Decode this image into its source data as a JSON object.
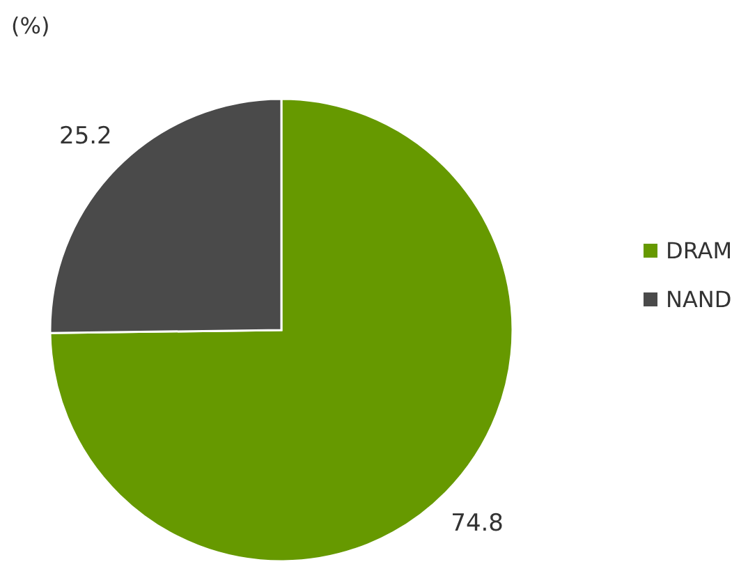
{
  "chart_data": {
    "type": "pie",
    "title": "(%)",
    "categories": [
      "DRAM",
      "NAND"
    ],
    "values": [
      74.8,
      25.2
    ],
    "colors": [
      "#669900",
      "#4a4a4a"
    ],
    "data_labels": true,
    "legend": "right"
  }
}
